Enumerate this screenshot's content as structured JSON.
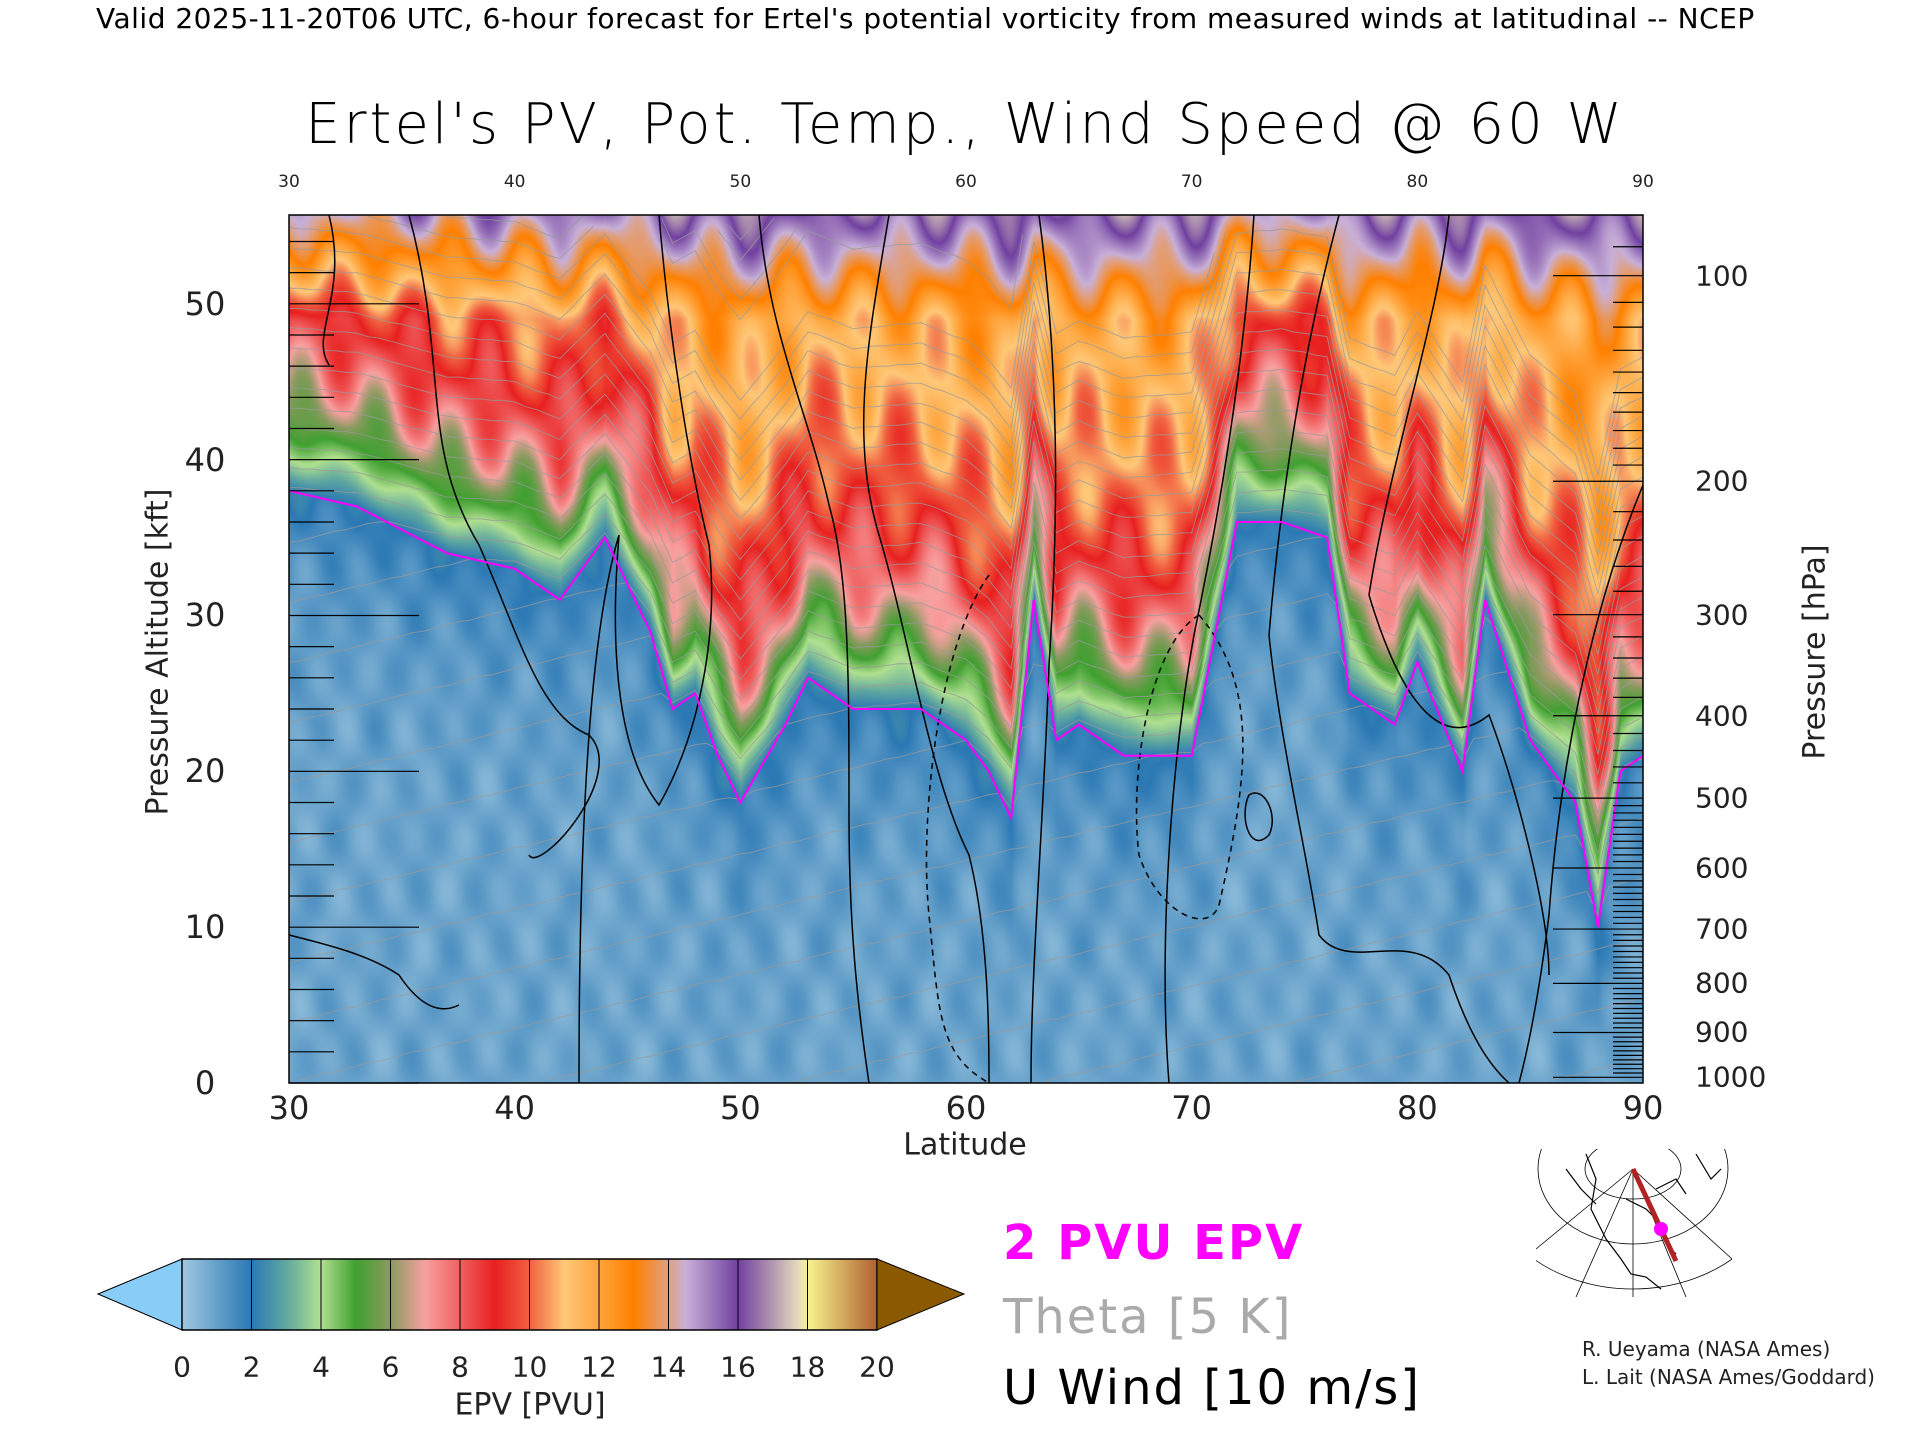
{
  "header": {
    "top_line": "Valid 2025-11-20T06 UTC, 6-hour forecast for Ertel's potential vorticity from measured winds at latitudinal -- NCEP",
    "title": "Ertel's PV, Pot. Temp., Wind Speed @ 60 W"
  },
  "chart_data": {
    "type": "heatmap",
    "title": "Ertel's PV, Pot. Temp., Wind Speed @ 60 W",
    "xlabel": "Latitude",
    "ylabel": "Pressure Altitude [kft]",
    "y2label": "Pressure [hPa]",
    "xlim": [
      30,
      90
    ],
    "ylim": [
      0,
      55.7
    ],
    "x_ticks": [
      "30",
      "40",
      "50",
      "60",
      "70",
      "80",
      "90"
    ],
    "x_ticks_top": [
      "30",
      "40",
      "50",
      "60",
      "70",
      "80",
      "90"
    ],
    "y_ticks": [
      "0",
      "10",
      "20",
      "30",
      "40",
      "50"
    ],
    "pressure_ticks": [
      "100",
      "200",
      "300",
      "400",
      "500",
      "600",
      "700",
      "800",
      "900",
      "1000"
    ],
    "colorbar": {
      "label": "EPV [PVU]",
      "ticks": [
        "0",
        "2",
        "4",
        "6",
        "8",
        "10",
        "12",
        "14",
        "16",
        "18",
        "20"
      ],
      "extend": "both"
    },
    "pv2_altitude_kft": {
      "lat": [
        30,
        33,
        37,
        40,
        42,
        44,
        46,
        47,
        48,
        49,
        50,
        52,
        53,
        55,
        58,
        60,
        61,
        62,
        63,
        64,
        65,
        67,
        68,
        70,
        72,
        74,
        76,
        77,
        79,
        80,
        82,
        83,
        85,
        87,
        88,
        89,
        90
      ],
      "kft": [
        38,
        37,
        34,
        33,
        31,
        35,
        29,
        24,
        25,
        21,
        18,
        23,
        26,
        24,
        24,
        22,
        20,
        17,
        31,
        22,
        23,
        21,
        21,
        21,
        36,
        36,
        35,
        25,
        23,
        27,
        20,
        31,
        22,
        18,
        10,
        20,
        21
      ]
    },
    "legend": [
      {
        "label": "2 PVU EPV",
        "color": "#ff00ff"
      },
      {
        "label": "Theta [5 K]",
        "color": "#aaaaaa"
      },
      {
        "label": "U Wind [10 m/s]",
        "color": "#000000"
      }
    ]
  },
  "credits": [
    "R. Ueyama (NASA Ames)",
    "L. Lait (NASA Ames/Goddard)"
  ],
  "colors": {
    "pv2": "#ff00ff",
    "theta": "#999999",
    "wind": "#000000",
    "section_line": "#b22222"
  }
}
